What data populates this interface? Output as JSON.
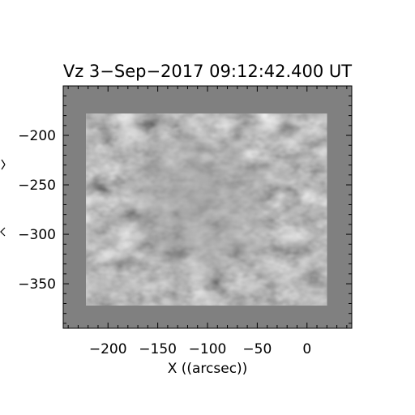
{
  "chart_data": {
    "type": "heatmap",
    "title": "Vz   3−Sep−2017 09:12:42.400 UT",
    "xlabel": "X ((arcsec))",
    "ylabel": "",
    "xlim": [
      -245,
      45
    ],
    "ylim": [
      -395,
      -150
    ],
    "data_extent": {
      "x": [
        -222,
        20
      ],
      "y": [
        -372,
        -178
      ]
    },
    "x_ticks": [
      {
        "value": -200,
        "label": "−200"
      },
      {
        "value": -150,
        "label": "−150"
      },
      {
        "value": -100,
        "label": "−100"
      },
      {
        "value": -50,
        "label": "−50"
      },
      {
        "value": 0,
        "label": "0"
      }
    ],
    "y_ticks": [
      {
        "value": -200,
        "label": "−200"
      },
      {
        "value": -250,
        "label": "−250"
      },
      {
        "value": -300,
        "label": "−300"
      },
      {
        "value": -350,
        "label": "−350"
      }
    ],
    "colormap": "grayscale",
    "background_color": "#808080"
  }
}
